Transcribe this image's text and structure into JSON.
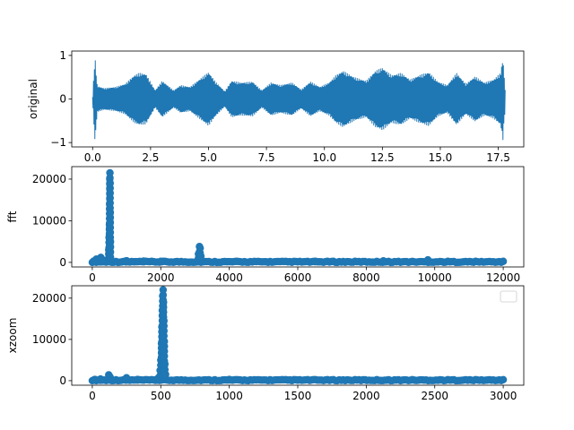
{
  "chart_data": [
    {
      "type": "line",
      "ylabel": "original",
      "xlabel": "",
      "xlim": [
        -0.9,
        18.6
      ],
      "ylim": [
        -1.1,
        1.1
      ],
      "xticks": [
        0,
        2.5,
        5,
        7.5,
        10,
        12.5,
        15,
        17.5
      ],
      "xtick_labels": [
        "0.0",
        "2.5",
        "5.0",
        "7.5",
        "10.0",
        "12.5",
        "15.0",
        "17.5"
      ],
      "yticks": [
        -1,
        0,
        1
      ],
      "ytick_labels": [
        "−1",
        "0",
        "1"
      ],
      "series_color": "#1f77b4",
      "envelope": {
        "x": [
          0.0,
          0.1,
          0.2,
          0.5,
          1.0,
          1.4,
          1.8,
          2.0,
          2.3,
          2.7,
          3.0,
          3.5,
          3.8,
          4.2,
          4.6,
          5.0,
          5.3,
          5.7,
          6.0,
          6.4,
          6.9,
          7.3,
          7.7,
          8.1,
          8.6,
          9.0,
          9.4,
          9.8,
          10.2,
          10.5,
          10.8,
          11.3,
          11.8,
          12.2,
          12.5,
          12.9,
          13.3,
          13.7,
          14.1,
          14.5,
          14.9,
          15.3,
          15.7,
          16.1,
          16.5,
          16.9,
          17.3,
          17.6,
          17.7,
          17.8
        ],
        "amp": [
          0.05,
          1.0,
          0.3,
          0.25,
          0.28,
          0.35,
          0.55,
          0.6,
          0.58,
          0.2,
          0.42,
          0.2,
          0.32,
          0.28,
          0.45,
          0.62,
          0.4,
          0.18,
          0.42,
          0.38,
          0.4,
          0.2,
          0.38,
          0.32,
          0.38,
          0.22,
          0.4,
          0.28,
          0.38,
          0.55,
          0.65,
          0.5,
          0.42,
          0.65,
          0.72,
          0.55,
          0.6,
          0.45,
          0.55,
          0.62,
          0.4,
          0.32,
          0.6,
          0.35,
          0.52,
          0.38,
          0.45,
          0.6,
          0.95,
          0.2
        ]
      }
    },
    {
      "type": "stem",
      "ylabel": "fft",
      "xlabel": "",
      "xlim": [
        -600,
        12600
      ],
      "ylim": [
        -1100,
        23000
      ],
      "xticks": [
        0,
        2000,
        4000,
        6000,
        8000,
        10000,
        12000
      ],
      "xtick_labels": [
        "0",
        "2000",
        "4000",
        "6000",
        "8000",
        "10000",
        "12000"
      ],
      "yticks": [
        0,
        10000,
        20000
      ],
      "ytick_labels": [
        "0",
        "10000",
        "20000"
      ],
      "marker_color": "#1f77b4",
      "baseline_color": "#d62728",
      "x_max": 12000,
      "peaks": [
        {
          "x": 40,
          "y": 300
        },
        {
          "x": 120,
          "y": 800
        },
        {
          "x": 250,
          "y": 1200
        },
        {
          "x": 330,
          "y": 500
        },
        {
          "x": 480,
          "y": 3000
        },
        {
          "x": 490,
          "y": 6000
        },
        {
          "x": 500,
          "y": 9000
        },
        {
          "x": 505,
          "y": 14000
        },
        {
          "x": 510,
          "y": 20000
        },
        {
          "x": 515,
          "y": 21500
        },
        {
          "x": 520,
          "y": 19000
        },
        {
          "x": 525,
          "y": 12000
        },
        {
          "x": 530,
          "y": 5000
        },
        {
          "x": 1000,
          "y": 400
        },
        {
          "x": 1500,
          "y": 300
        },
        {
          "x": 2000,
          "y": 250
        },
        {
          "x": 3100,
          "y": 2000
        },
        {
          "x": 3130,
          "y": 3800
        },
        {
          "x": 3150,
          "y": 3400
        },
        {
          "x": 3170,
          "y": 1500
        },
        {
          "x": 6500,
          "y": 150
        },
        {
          "x": 8500,
          "y": 350
        },
        {
          "x": 9800,
          "y": 600
        }
      ]
    },
    {
      "type": "stem",
      "ylabel": "xzoom",
      "xlabel": "",
      "xlim": [
        -150,
        3150
      ],
      "ylim": [
        -1100,
        23000
      ],
      "xticks": [
        0,
        500,
        1000,
        1500,
        2000,
        2500,
        3000
      ],
      "xtick_labels": [
        "0",
        "500",
        "1000",
        "1500",
        "2000",
        "2500",
        "3000"
      ],
      "yticks": [
        0,
        10000,
        20000
      ],
      "ytick_labels": [
        "0",
        "10000",
        "20000"
      ],
      "marker_color": "#1f77b4",
      "baseline_color": "#d62728",
      "x_max": 3000,
      "legend": "upper-right",
      "peaks": [
        {
          "x": 20,
          "y": 300
        },
        {
          "x": 60,
          "y": 400
        },
        {
          "x": 120,
          "y": 1400
        },
        {
          "x": 130,
          "y": 900
        },
        {
          "x": 250,
          "y": 700
        },
        {
          "x": 330,
          "y": 300
        },
        {
          "x": 480,
          "y": 600
        },
        {
          "x": 495,
          "y": 2500
        },
        {
          "x": 500,
          "y": 5000
        },
        {
          "x": 505,
          "y": 9000
        },
        {
          "x": 508,
          "y": 13000
        },
        {
          "x": 511,
          "y": 17000
        },
        {
          "x": 514,
          "y": 20500
        },
        {
          "x": 517,
          "y": 22000
        },
        {
          "x": 520,
          "y": 19000
        },
        {
          "x": 523,
          "y": 14500
        },
        {
          "x": 526,
          "y": 9500
        },
        {
          "x": 530,
          "y": 4000
        },
        {
          "x": 535,
          "y": 1500
        },
        {
          "x": 1000,
          "y": 300
        },
        {
          "x": 1500,
          "y": 150
        },
        {
          "x": 2000,
          "y": 100
        }
      ]
    }
  ]
}
